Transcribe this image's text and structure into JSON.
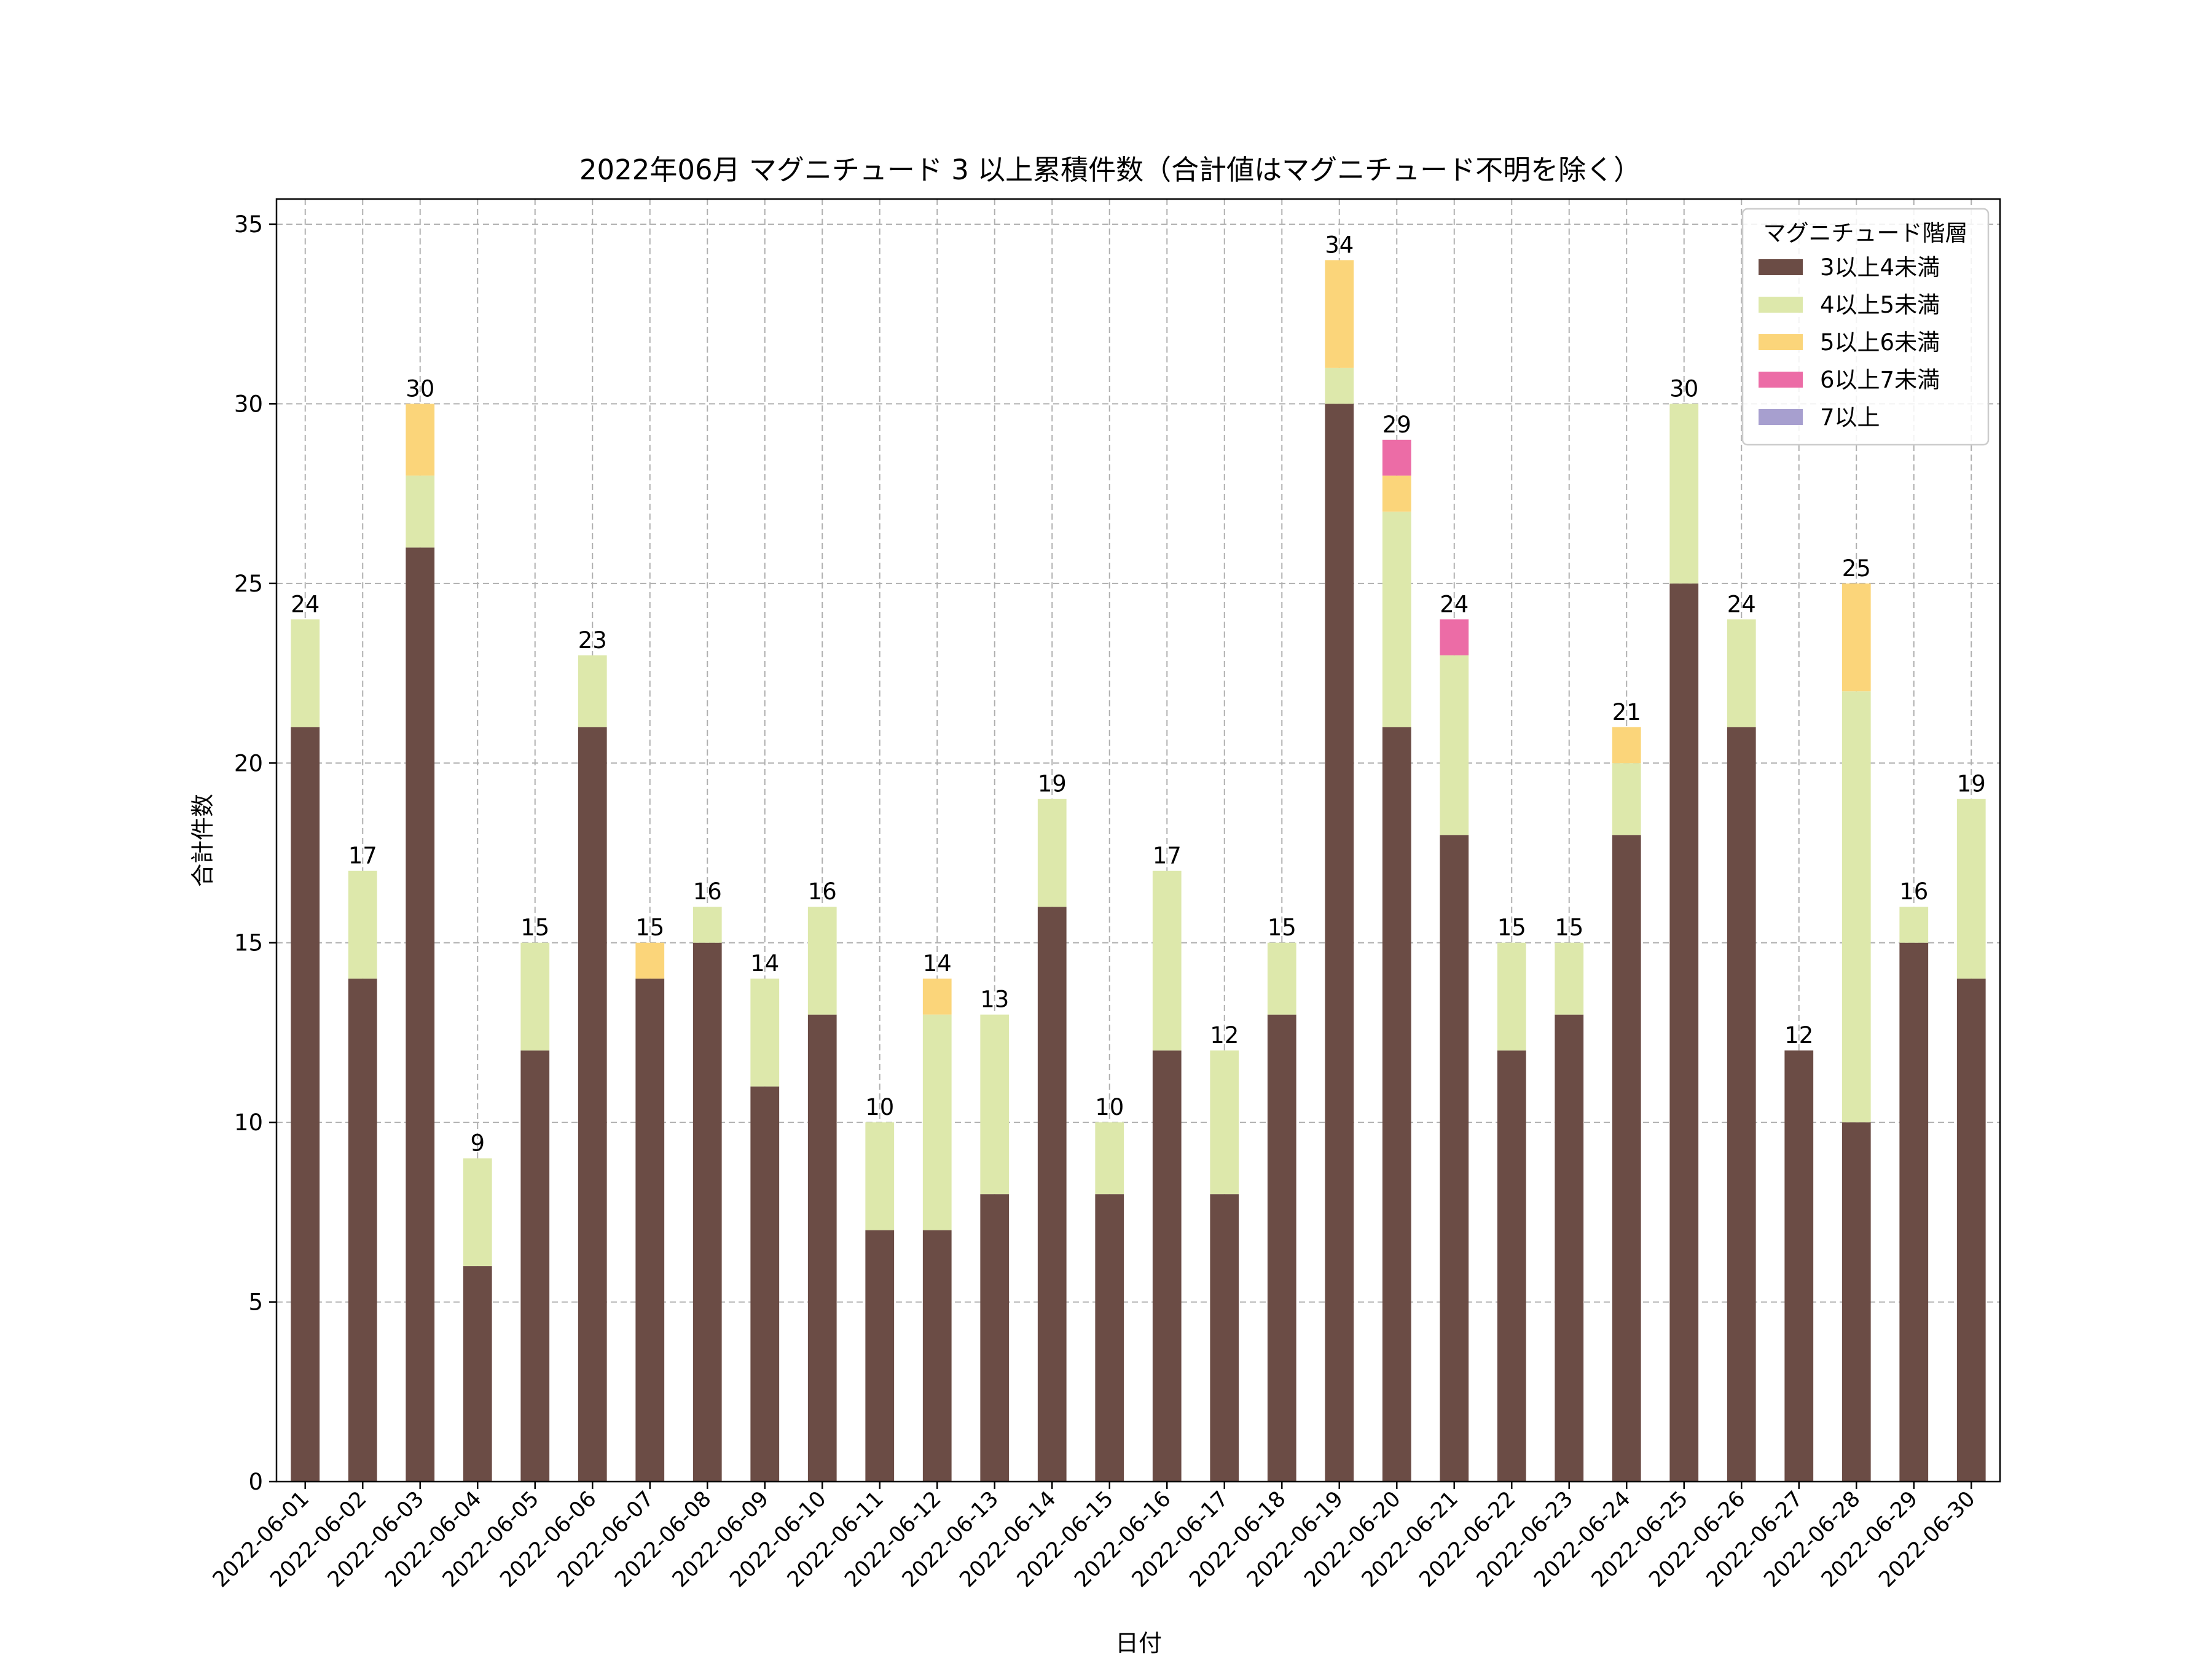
{
  "chart_data": {
    "type": "bar",
    "stacked": true,
    "title": "2022年06月 マグニチュード 3 以上累積件数（合計値はマグニチュード不明を除く）",
    "xlabel": "日付",
    "ylabel": "合計件数",
    "ylim": [
      0,
      35.7
    ],
    "yticks": [
      0,
      5,
      10,
      15,
      20,
      25,
      30,
      35
    ],
    "grid": true,
    "legend": {
      "title": "マグニチュード階層",
      "placement": "top-right"
    },
    "categories": [
      "2022-06-01",
      "2022-06-02",
      "2022-06-03",
      "2022-06-04",
      "2022-06-05",
      "2022-06-06",
      "2022-06-07",
      "2022-06-08",
      "2022-06-09",
      "2022-06-10",
      "2022-06-11",
      "2022-06-12",
      "2022-06-13",
      "2022-06-14",
      "2022-06-15",
      "2022-06-16",
      "2022-06-17",
      "2022-06-18",
      "2022-06-19",
      "2022-06-20",
      "2022-06-21",
      "2022-06-22",
      "2022-06-23",
      "2022-06-24",
      "2022-06-25",
      "2022-06-26",
      "2022-06-27",
      "2022-06-28",
      "2022-06-29",
      "2022-06-30"
    ],
    "series": [
      {
        "name": "3以上4未満",
        "color": "#6b4c45",
        "values": [
          21,
          14,
          26,
          6,
          12,
          21,
          14,
          15,
          11,
          13,
          7,
          7,
          8,
          16,
          8,
          12,
          8,
          13,
          30,
          21,
          18,
          12,
          13,
          18,
          25,
          21,
          12,
          10,
          15,
          14
        ]
      },
      {
        "name": "4以上5未満",
        "color": "#dde8ab",
        "values": [
          3,
          3,
          2,
          3,
          3,
          2,
          0,
          1,
          3,
          3,
          3,
          6,
          5,
          3,
          2,
          5,
          4,
          2,
          1,
          6,
          5,
          3,
          2,
          2,
          5,
          3,
          0,
          12,
          1,
          5
        ]
      },
      {
        "name": "5以上6未満",
        "color": "#fbd57a",
        "values": [
          0,
          0,
          2,
          0,
          0,
          0,
          1,
          0,
          0,
          0,
          0,
          1,
          0,
          0,
          0,
          0,
          0,
          0,
          3,
          1,
          0,
          0,
          0,
          1,
          0,
          0,
          0,
          3,
          0,
          0
        ]
      },
      {
        "name": "6以上7未満",
        "color": "#ec6ca6",
        "values": [
          0,
          0,
          0,
          0,
          0,
          0,
          0,
          0,
          0,
          0,
          0,
          0,
          0,
          0,
          0,
          0,
          0,
          0,
          0,
          1,
          1,
          0,
          0,
          0,
          0,
          0,
          0,
          0,
          0,
          0
        ]
      },
      {
        "name": "7以上",
        "color": "#a79fcf",
        "values": [
          0,
          0,
          0,
          0,
          0,
          0,
          0,
          0,
          0,
          0,
          0,
          0,
          0,
          0,
          0,
          0,
          0,
          0,
          0,
          0,
          0,
          0,
          0,
          0,
          0,
          0,
          0,
          0,
          0,
          0
        ]
      }
    ],
    "totals": [
      24,
      17,
      30,
      9,
      15,
      23,
      15,
      16,
      14,
      16,
      10,
      14,
      13,
      19,
      10,
      17,
      12,
      15,
      34,
      29,
      24,
      15,
      15,
      21,
      30,
      24,
      12,
      25,
      16,
      19
    ]
  }
}
